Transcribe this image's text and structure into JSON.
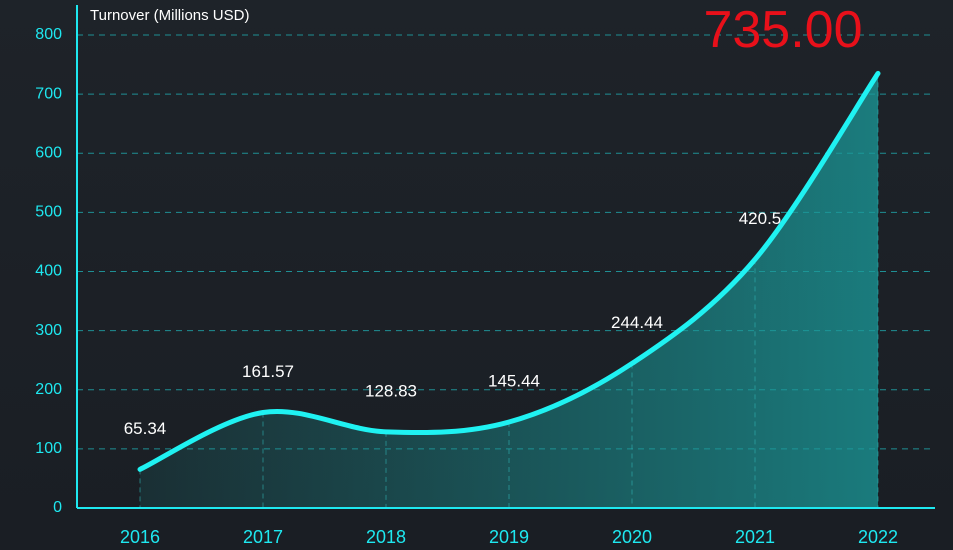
{
  "chart_data": {
    "type": "line",
    "y_label": "Turnover (Millions USD)",
    "categories": [
      "2016",
      "2017",
      "2018",
      "2019",
      "2020",
      "2021",
      "2022"
    ],
    "series": [
      {
        "color": "#1ff2f2",
        "values": [
          65.34,
          161.57,
          128.83,
          145.44,
          244.44,
          420.5,
          735
        ],
        "value_labels": [
          "65.34",
          "161.57",
          "128.83",
          "145.44",
          "244.44",
          "420.5",
          "735.00"
        ]
      }
    ],
    "ylim": [
      0,
      800
    ],
    "yticks": [
      0,
      100,
      200,
      300,
      400,
      500,
      600,
      700,
      800
    ],
    "grid": true,
    "label_color": "#ffffff",
    "highlight_color": "#e8101a"
  }
}
